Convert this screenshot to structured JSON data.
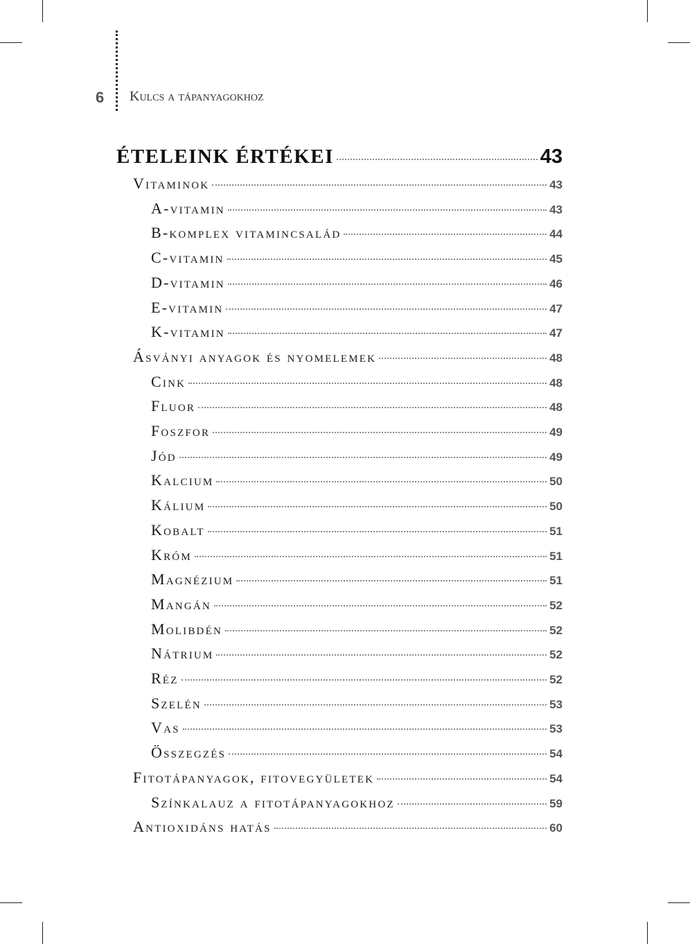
{
  "header": {
    "page_number": "6",
    "running_title": "Kulcs a tápanyagokhoz"
  },
  "toc": {
    "title": {
      "label": "ÉTELEINK ÉRTÉKEI",
      "page": "43"
    },
    "entries": [
      {
        "label": "Vitaminok",
        "page": "43",
        "level": 1
      },
      {
        "label": "A-vitamin",
        "page": "43",
        "level": 2
      },
      {
        "label": "B-komplex vitamincsalád",
        "page": "44",
        "level": 2
      },
      {
        "label": "C-vitamin",
        "page": "45",
        "level": 2
      },
      {
        "label": "D-vitamin",
        "page": "46",
        "level": 2
      },
      {
        "label": "E-vitamin",
        "page": "47",
        "level": 2
      },
      {
        "label": "K-vitamin",
        "page": "47",
        "level": 2
      },
      {
        "label": "Ásványi anyagok és nyomelemek",
        "page": "48",
        "level": 1
      },
      {
        "label": "Cink",
        "page": "48",
        "level": 2
      },
      {
        "label": "Fluor",
        "page": "48",
        "level": 2
      },
      {
        "label": "Foszfor",
        "page": "49",
        "level": 2
      },
      {
        "label": "Jód",
        "page": "49",
        "level": 2
      },
      {
        "label": "Kalcium",
        "page": "50",
        "level": 2
      },
      {
        "label": "Kálium",
        "page": "50",
        "level": 2
      },
      {
        "label": "Kobalt",
        "page": "51",
        "level": 2
      },
      {
        "label": "Króm",
        "page": "51",
        "level": 2
      },
      {
        "label": "Magnézium",
        "page": "51",
        "level": 2
      },
      {
        "label": "Mangán",
        "page": "52",
        "level": 2
      },
      {
        "label": "Molibdén",
        "page": "52",
        "level": 2
      },
      {
        "label": "Nátrium",
        "page": "52",
        "level": 2
      },
      {
        "label": "Réz",
        "page": "52",
        "level": 2
      },
      {
        "label": "Szelén",
        "page": "53",
        "level": 2
      },
      {
        "label": "Vas",
        "page": "53",
        "level": 2
      },
      {
        "label": "Összegzés",
        "page": "54",
        "level": 2
      },
      {
        "label": "Fitotápanyagok, fitovegyületek",
        "page": "54",
        "level": 1
      },
      {
        "label": "Színkalauz a fitotápanyagokhoz",
        "page": "59",
        "level": 2
      },
      {
        "label": "Antioxidáns hatás",
        "page": "60",
        "level": 1
      }
    ]
  }
}
